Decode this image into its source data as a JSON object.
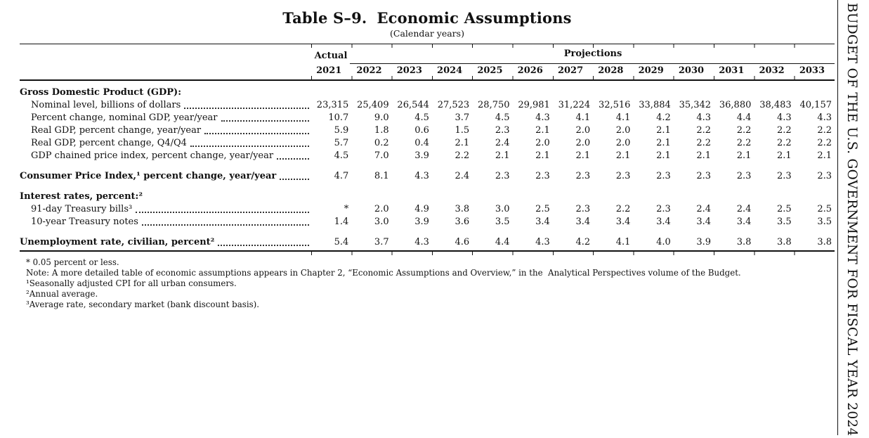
{
  "title": {
    "label": "Table S–9.",
    "text": "Economic Assumptions",
    "subtitle": "(Calendar years)"
  },
  "header": {
    "actual_label": "Actual",
    "actual_year": "2021",
    "projections_label": "Projections",
    "projection_years": [
      "2022",
      "2023",
      "2024",
      "2025",
      "2026",
      "2027",
      "2028",
      "2029",
      "2030",
      "2031",
      "2032",
      "2033"
    ]
  },
  "rows": [
    {
      "label": "Gross Domestic Product (GDP):",
      "style": "section",
      "values": []
    },
    {
      "label": "Nominal level, billions of dollars",
      "style": "indent",
      "values": [
        "23,315",
        "25,409",
        "26,544",
        "27,523",
        "28,750",
        "29,981",
        "31,224",
        "32,516",
        "33,884",
        "35,342",
        "36,880",
        "38,483",
        "40,157"
      ]
    },
    {
      "label": "Percent change, nominal GDP, year/year",
      "style": "indent",
      "values": [
        "10.7",
        "9.0",
        "4.5",
        "3.7",
        "4.5",
        "4.3",
        "4.1",
        "4.1",
        "4.2",
        "4.3",
        "4.4",
        "4.3",
        "4.3"
      ]
    },
    {
      "label": "Real GDP, percent change, year/year",
      "style": "indent",
      "values": [
        "5.9",
        "1.8",
        "0.6",
        "1.5",
        "2.3",
        "2.1",
        "2.0",
        "2.0",
        "2.1",
        "2.2",
        "2.2",
        "2.2",
        "2.2"
      ]
    },
    {
      "label": "Real GDP, percent change, Q4/Q4",
      "style": "indent",
      "values": [
        "5.7",
        "0.2",
        "0.4",
        "2.1",
        "2.4",
        "2.0",
        "2.0",
        "2.0",
        "2.1",
        "2.2",
        "2.2",
        "2.2",
        "2.2"
      ]
    },
    {
      "label": "GDP chained price index, percent change, year/year",
      "style": "indent",
      "values": [
        "4.5",
        "7.0",
        "3.9",
        "2.2",
        "2.1",
        "2.1",
        "2.1",
        "2.1",
        "2.1",
        "2.1",
        "2.1",
        "2.1",
        "2.1"
      ]
    },
    {
      "label": "Consumer Price Index,¹ percent change, year/year",
      "style": "bold spaced",
      "values": [
        "4.7",
        "8.1",
        "4.3",
        "2.4",
        "2.3",
        "2.3",
        "2.3",
        "2.3",
        "2.3",
        "2.3",
        "2.3",
        "2.3",
        "2.3"
      ]
    },
    {
      "label": "Interest rates, percent:²",
      "style": "section spaced",
      "values": []
    },
    {
      "label": "91-day Treasury bills³",
      "style": "indent",
      "values": [
        "*",
        "2.0",
        "4.9",
        "3.8",
        "3.0",
        "2.5",
        "2.3",
        "2.2",
        "2.3",
        "2.4",
        "2.4",
        "2.5",
        "2.5"
      ]
    },
    {
      "label": "10-year Treasury notes",
      "style": "indent",
      "values": [
        "1.4",
        "3.0",
        "3.9",
        "3.6",
        "3.5",
        "3.4",
        "3.4",
        "3.4",
        "3.4",
        "3.4",
        "3.4",
        "3.5",
        "3.5"
      ]
    },
    {
      "label": "Unemployment rate, civilian, percent²",
      "style": "bold spaced",
      "values": [
        "5.4",
        "3.7",
        "4.3",
        "4.6",
        "4.4",
        "4.3",
        "4.2",
        "4.1",
        "4.0",
        "3.9",
        "3.8",
        "3.8",
        "3.8"
      ]
    }
  ],
  "footnotes": [
    "* 0.05 percent or less.",
    "Note: A more detailed table of economic assumptions appears in Chapter 2, “Economic Assumptions and Overview,” in the  Analytical Perspectives volume of the Budget.",
    "¹Seasonally adjusted CPI for all urban consumers.",
    "²Annual average.",
    "³Average rate, secondary market (bank discount basis)."
  ],
  "sidebar": {
    "text": "BUDGET OF THE U.S. GOVERNMENT FOR FISCAL YEAR 2024"
  }
}
